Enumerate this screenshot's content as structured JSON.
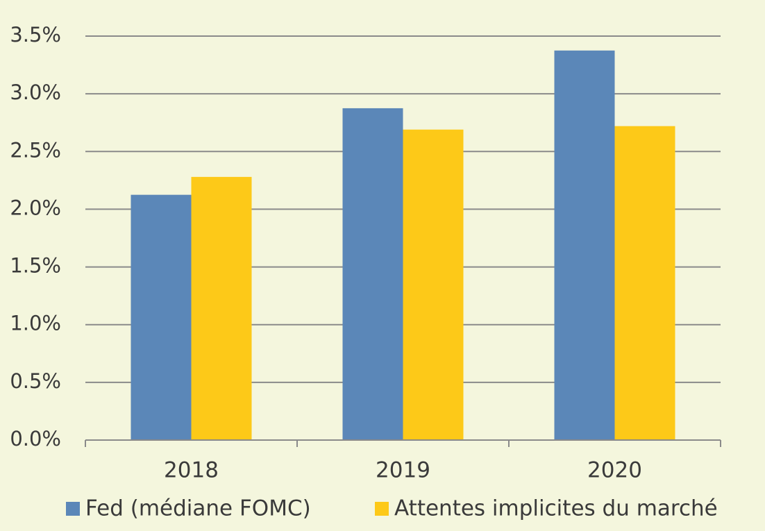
{
  "chart_data": {
    "type": "bar",
    "categories": [
      "2018",
      "2019",
      "2020"
    ],
    "series": [
      {
        "name": "Fed (médiane FOMC)",
        "color": "#5b87b8",
        "values": [
          2.125,
          2.875,
          3.375
        ]
      },
      {
        "name": "Attentes implicites du marché",
        "color": "#fdc918",
        "values": [
          2.28,
          2.69,
          2.72
        ]
      }
    ],
    "ylim": [
      0,
      3.5
    ],
    "yticks": [
      {
        "value": 0,
        "label": "0.0%"
      },
      {
        "value": 0.5,
        "label": "0.5%"
      },
      {
        "value": 1,
        "label": "1.0%"
      },
      {
        "value": 1.5,
        "label": "1.5%"
      },
      {
        "value": 2,
        "label": "2.0%"
      },
      {
        "value": 2.5,
        "label": "2.5%"
      },
      {
        "value": 3,
        "label": "3.0%"
      },
      {
        "value": 3.5,
        "label": "3.5%"
      }
    ],
    "grid": true
  }
}
